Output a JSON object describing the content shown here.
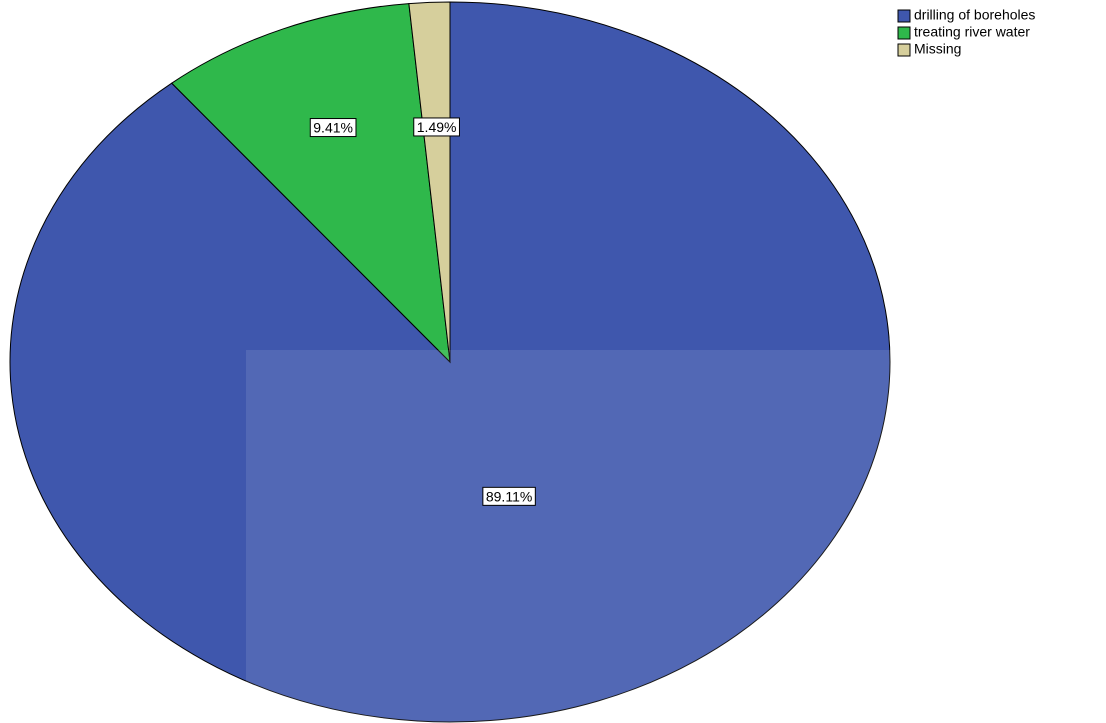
{
  "chart_data": {
    "type": "pie",
    "categories": [
      "drilling of boreholes",
      "treating river water",
      "Missing"
    ],
    "values": [
      89.11,
      9.41,
      1.49
    ],
    "value_labels": [
      "89.11%",
      "9.41%",
      "1.49%"
    ],
    "colors": [
      "#3f57ad",
      "#2fb84b",
      "#d6cf9c"
    ],
    "legend": "top-right"
  }
}
